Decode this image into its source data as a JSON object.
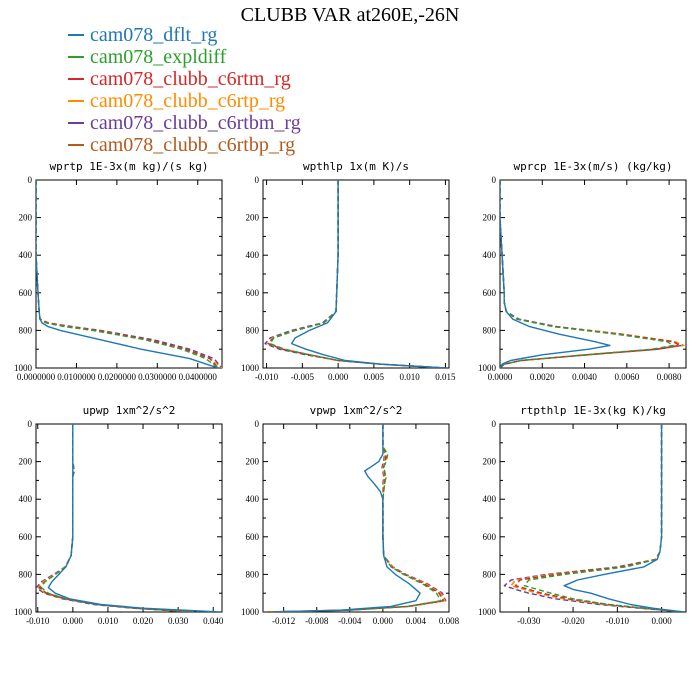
{
  "figure": {
    "title": "CLUBB VAR at260E,-26N"
  },
  "legend": [
    {
      "name": "cam078_dflt_rg",
      "color": "#1f77b4",
      "dash": "solid"
    },
    {
      "name": "cam078_expldiff",
      "color": "#2ca02c",
      "dash": "dash"
    },
    {
      "name": "cam078_clubb_c6rtm_rg",
      "color": "#d62728",
      "dash": "dash"
    },
    {
      "name": "cam078_clubb_c6rtp_rg",
      "color": "#ff8c00",
      "dash": "dash"
    },
    {
      "name": "cam078_clubb_c6rtbm_rg",
      "color": "#6a3d9a",
      "dash": "dash"
    },
    {
      "name": "cam078_clubb_c6rtbp_rg",
      "color": "#b35a1f",
      "dash": "dash"
    }
  ],
  "chart_data": [
    {
      "type": "line",
      "title": "wprtp  1E-3x(m kg)/(s kg)",
      "ylim": [
        1000,
        0
      ],
      "yticks": [
        0,
        200,
        400,
        600,
        800,
        1000
      ],
      "xlim": [
        0,
        0.046
      ],
      "xticks": [
        0,
        0.01,
        0.02,
        0.03,
        0.04
      ],
      "xtick_labels": [
        "0.0000000",
        "0.0100000",
        "0.0200000",
        "0.0300000",
        "0.0400000"
      ],
      "y": [
        0,
        200,
        400,
        600,
        700,
        740,
        760,
        780,
        800,
        850,
        900,
        950,
        1000
      ],
      "series": [
        {
          "values": [
            0,
            0,
            0,
            0.0005,
            0.0008,
            0.001,
            0.0015,
            0.003,
            0.006,
            0.016,
            0.026,
            0.038,
            0.045
          ]
        },
        {
          "values": [
            0,
            0,
            0,
            0.0005,
            0.0008,
            0.001,
            0.0025,
            0.007,
            0.014,
            0.027,
            0.036,
            0.042,
            0.045
          ]
        },
        {
          "values": [
            0,
            0,
            0,
            0.0005,
            0.0008,
            0.001,
            0.003,
            0.008,
            0.015,
            0.028,
            0.037,
            0.043,
            0.045
          ]
        },
        {
          "values": [
            0,
            0,
            0,
            0.0005,
            0.0008,
            0.001,
            0.003,
            0.008,
            0.015,
            0.028,
            0.037,
            0.043,
            0.046
          ]
        },
        {
          "values": [
            0,
            0,
            0,
            0.0005,
            0.0008,
            0.001,
            0.003,
            0.009,
            0.016,
            0.029,
            0.038,
            0.044,
            0.046
          ]
        },
        {
          "values": [
            0,
            0,
            0,
            0.0005,
            0.0008,
            0.001,
            0.003,
            0.008,
            0.015,
            0.028,
            0.037,
            0.043,
            0.045
          ]
        }
      ]
    },
    {
      "type": "line",
      "title": "wpthlp  1x(m K)/s",
      "ylim": [
        1000,
        0
      ],
      "yticks": [
        0,
        200,
        400,
        600,
        800,
        1000
      ],
      "xlim": [
        -0.0105,
        0.0155
      ],
      "xticks": [
        -0.01,
        -0.005,
        0,
        0.005,
        0.01,
        0.015
      ],
      "xtick_labels": [
        "-0.010",
        "-0.005",
        "0.000",
        "0.005",
        "0.010",
        "0.015"
      ],
      "y": [
        0,
        200,
        400,
        600,
        700,
        760,
        800,
        840,
        870,
        900,
        930,
        960,
        980,
        1000
      ],
      "series": [
        {
          "values": [
            0,
            0,
            0,
            -0.0002,
            -0.0003,
            -0.0015,
            -0.004,
            -0.006,
            -0.0065,
            -0.0045,
            -0.002,
            0.001,
            0.006,
            0.015
          ]
        },
        {
          "values": [
            0,
            0,
            0,
            -0.0002,
            -0.0003,
            -0.002,
            -0.006,
            -0.009,
            -0.0095,
            -0.0075,
            -0.004,
            0,
            0.006,
            0.015
          ]
        },
        {
          "values": [
            0,
            0,
            0,
            -0.0002,
            -0.0003,
            -0.002,
            -0.006,
            -0.009,
            -0.0098,
            -0.0078,
            -0.004,
            0,
            0.006,
            0.015
          ]
        },
        {
          "values": [
            0,
            0,
            0,
            -0.0002,
            -0.0003,
            -0.002,
            -0.006,
            -0.0092,
            -0.0098,
            -0.0078,
            -0.004,
            0,
            0.006,
            0.015
          ]
        },
        {
          "values": [
            0,
            0,
            0,
            -0.0002,
            -0.0003,
            -0.0022,
            -0.0065,
            -0.0095,
            -0.0102,
            -0.0082,
            -0.0045,
            0,
            0.006,
            0.015
          ]
        },
        {
          "values": [
            0,
            0,
            0,
            -0.0002,
            -0.0003,
            -0.002,
            -0.006,
            -0.009,
            -0.0096,
            -0.0076,
            -0.004,
            0,
            0.006,
            0.015
          ]
        }
      ]
    },
    {
      "type": "line",
      "title": "wprcp  1E-3x(m/s) (kg/kg)",
      "ylim": [
        1000,
        0
      ],
      "yticks": [
        0,
        200,
        400,
        600,
        800,
        1000
      ],
      "xlim": [
        0,
        0.0088
      ],
      "xticks": [
        0,
        0.002,
        0.004,
        0.006,
        0.008
      ],
      "xtick_labels": [
        "0.0000",
        "0.0020",
        "0.0040",
        "0.0060",
        "0.0080"
      ],
      "y": [
        0,
        200,
        400,
        600,
        650,
        700,
        740,
        780,
        820,
        860,
        880,
        900,
        930,
        960,
        980,
        1000
      ],
      "series": [
        {
          "values": [
            0,
            0,
            0.0001,
            0.0002,
            0.0002,
            0.0003,
            0.0006,
            0.0014,
            0.0028,
            0.0045,
            0.0052,
            0.0042,
            0.002,
            0.0005,
            0.0001,
            0
          ]
        },
        {
          "values": [
            0,
            0,
            0.0001,
            0.0002,
            0.0002,
            0.0003,
            0.0008,
            0.0025,
            0.0055,
            0.0079,
            0.0082,
            0.0072,
            0.004,
            0.001,
            0.0002,
            0
          ]
        },
        {
          "values": [
            0,
            0,
            0.0001,
            0.0002,
            0.0002,
            0.0003,
            0.0008,
            0.0026,
            0.0057,
            0.0082,
            0.0085,
            0.0074,
            0.0041,
            0.001,
            0.0002,
            0
          ]
        },
        {
          "values": [
            0,
            0,
            0.0001,
            0.0002,
            0.0002,
            0.0003,
            0.0008,
            0.0026,
            0.0058,
            0.0083,
            0.0087,
            0.0075,
            0.0042,
            0.001,
            0.0002,
            0
          ]
        },
        {
          "values": [
            0,
            0,
            0.0001,
            0.0002,
            0.0002,
            0.0003,
            0.0009,
            0.0027,
            0.0058,
            0.0082,
            0.0086,
            0.0075,
            0.0042,
            0.001,
            0.0002,
            0
          ]
        },
        {
          "values": [
            0,
            0,
            0.0001,
            0.0002,
            0.0002,
            0.0003,
            0.0008,
            0.0026,
            0.0057,
            0.0082,
            0.0085,
            0.0074,
            0.0041,
            0.001,
            0.0002,
            0
          ]
        }
      ]
    },
    {
      "type": "line",
      "title": "upwp  1xm^2/s^2",
      "ylim": [
        1000,
        0
      ],
      "yticks": [
        0,
        200,
        400,
        600,
        800,
        1000
      ],
      "xlim": [
        -0.0105,
        0.0425
      ],
      "xticks": [
        -0.01,
        0,
        0.01,
        0.02,
        0.03,
        0.04
      ],
      "xtick_labels": [
        "-0.010",
        "0.000",
        "0.010",
        "0.020",
        "0.030",
        "0.040"
      ],
      "y": [
        0,
        200,
        250,
        280,
        400,
        600,
        700,
        760,
        800,
        840,
        870,
        900,
        930,
        960,
        980,
        1000
      ],
      "series": [
        {
          "values": [
            0,
            0,
            0,
            0,
            0,
            0,
            -0.0005,
            -0.002,
            -0.004,
            -0.006,
            -0.007,
            -0.005,
            -0.001,
            0.008,
            0.02,
            0.042
          ]
        },
        {
          "values": [
            0,
            0,
            0.0003,
            0,
            0,
            0,
            -0.0005,
            -0.002,
            -0.005,
            -0.008,
            -0.009,
            -0.007,
            -0.002,
            0.007,
            0.018,
            0.035
          ]
        },
        {
          "values": [
            0,
            0,
            0.0004,
            0,
            0,
            0,
            -0.0005,
            -0.002,
            -0.005,
            -0.008,
            -0.0095,
            -0.0075,
            -0.002,
            0.007,
            0.018,
            0.033
          ]
        },
        {
          "values": [
            0,
            0,
            0.0004,
            0,
            0,
            0,
            -0.0005,
            -0.0022,
            -0.0052,
            -0.0085,
            -0.0098,
            -0.0078,
            -0.0025,
            0.007,
            0.018,
            0.034
          ]
        },
        {
          "values": [
            0,
            0,
            0.0004,
            0,
            0,
            0,
            -0.0005,
            -0.0022,
            -0.0055,
            -0.009,
            -0.0104,
            -0.0082,
            -0.003,
            0.006,
            0.017,
            0.036
          ]
        },
        {
          "values": [
            0,
            0,
            0.0003,
            0,
            0,
            0,
            -0.0005,
            -0.0021,
            -0.0052,
            -0.0085,
            -0.0098,
            -0.0078,
            -0.0025,
            0.007,
            0.018,
            0.034
          ]
        }
      ]
    },
    {
      "type": "line",
      "title": "vpwp  1xm^2/s^2",
      "ylim": [
        1000,
        0
      ],
      "yticks": [
        0,
        200,
        400,
        600,
        800,
        1000
      ],
      "xlim": [
        -0.0145,
        0.008
      ],
      "xticks": [
        -0.012,
        -0.008,
        -0.004,
        0,
        0.004,
        0.008
      ],
      "xtick_labels": [
        "-0.012",
        "-0.008",
        "-0.004",
        "0.000",
        "0.004",
        "0.008"
      ],
      "y": [
        0,
        120,
        140,
        160,
        200,
        230,
        250,
        280,
        320,
        360,
        400,
        500,
        600,
        700,
        760,
        800,
        850,
        900,
        940,
        970,
        990,
        1000
      ],
      "series": [
        {
          "values": [
            0,
            0,
            0,
            0,
            -0.0005,
            -0.0015,
            -0.0022,
            -0.0018,
            -0.001,
            -0.0003,
            0,
            0,
            0,
            0.0001,
            0.0005,
            0.0015,
            0.0032,
            0.0045,
            0.004,
            0.001,
            -0.005,
            -0.013
          ]
        },
        {
          "values": [
            0,
            0,
            0.0003,
            0.0006,
            0.0004,
            0.0001,
            0.0002,
            0.0004,
            0.0002,
            0.0001,
            0,
            0,
            0,
            0.0001,
            0.001,
            0.0025,
            0.0048,
            0.0065,
            0.007,
            0.003,
            -0.004,
            -0.014
          ]
        },
        {
          "values": [
            0,
            0,
            0.0002,
            0.0004,
            0.0003,
            0.0001,
            0.0002,
            0.0003,
            0.0002,
            0.0001,
            0,
            0,
            0,
            0.0001,
            0.001,
            0.0026,
            0.005,
            0.0068,
            0.0073,
            0.003,
            -0.004,
            -0.014
          ]
        },
        {
          "values": [
            0,
            0,
            0.0001,
            0.0003,
            0.0002,
            0,
            0.0001,
            0.0002,
            0.0001,
            0,
            0,
            0,
            0,
            0.0001,
            0.0011,
            0.0027,
            0.0052,
            0.007,
            0.0075,
            0.0032,
            -0.004,
            -0.0142
          ]
        },
        {
          "values": [
            0,
            0,
            0.0001,
            0.0002,
            0.0001,
            -0.0001,
            0,
            0.0001,
            0,
            0,
            0,
            0,
            0,
            0.0001,
            0.0012,
            0.0028,
            0.0054,
            0.0072,
            0.0076,
            0.0032,
            -0.004,
            -0.0145
          ]
        },
        {
          "values": [
            0,
            0,
            0.0002,
            0.0003,
            0.0002,
            0,
            0.0001,
            0.0002,
            0.0001,
            0,
            0,
            0,
            0,
            0.0001,
            0.0011,
            0.0027,
            0.0052,
            0.007,
            0.0074,
            0.0031,
            -0.004,
            -0.0142
          ]
        }
      ]
    },
    {
      "type": "line",
      "title": "rtpthlp  1E-3x(kg K)/kg",
      "ylim": [
        1000,
        0
      ],
      "yticks": [
        0,
        200,
        400,
        600,
        800,
        1000
      ],
      "xlim": [
        -0.0365,
        0.0055
      ],
      "xticks": [
        -0.03,
        -0.02,
        -0.01,
        0
      ],
      "xtick_labels": [
        "-0.030",
        "-0.020",
        "-0.010",
        "0.000"
      ],
      "y": [
        0,
        200,
        400,
        600,
        680,
        720,
        760,
        800,
        830,
        860,
        880,
        900,
        930,
        960,
        980,
        1000
      ],
      "series": [
        {
          "values": [
            0,
            0,
            0,
            0,
            -0.0004,
            -0.001,
            -0.004,
            -0.013,
            -0.019,
            -0.022,
            -0.02,
            -0.016,
            -0.012,
            -0.007,
            -0.002,
            0.005
          ]
        },
        {
          "values": [
            0,
            0,
            0,
            0,
            -0.0004,
            -0.0012,
            -0.008,
            -0.022,
            -0.03,
            -0.031,
            -0.028,
            -0.025,
            -0.02,
            -0.012,
            -0.004,
            0.005
          ]
        },
        {
          "values": [
            0,
            0,
            0,
            0,
            -0.0004,
            -0.0012,
            -0.009,
            -0.024,
            -0.032,
            -0.033,
            -0.03,
            -0.027,
            -0.021,
            -0.012,
            -0.004,
            0.005
          ]
        },
        {
          "values": [
            0,
            0,
            0,
            0,
            -0.0004,
            -0.0013,
            -0.009,
            -0.025,
            -0.033,
            -0.034,
            -0.031,
            -0.028,
            -0.022,
            -0.013,
            -0.004,
            0.005
          ]
        },
        {
          "values": [
            0,
            0,
            0,
            0,
            -0.0004,
            -0.0014,
            -0.01,
            -0.026,
            -0.034,
            -0.0355,
            -0.033,
            -0.03,
            -0.024,
            -0.014,
            -0.005,
            0.005
          ]
        },
        {
          "values": [
            0,
            0,
            0,
            0,
            -0.0004,
            -0.0013,
            -0.009,
            -0.025,
            -0.033,
            -0.034,
            -0.031,
            -0.028,
            -0.022,
            -0.013,
            -0.004,
            0.005
          ]
        }
      ]
    }
  ]
}
